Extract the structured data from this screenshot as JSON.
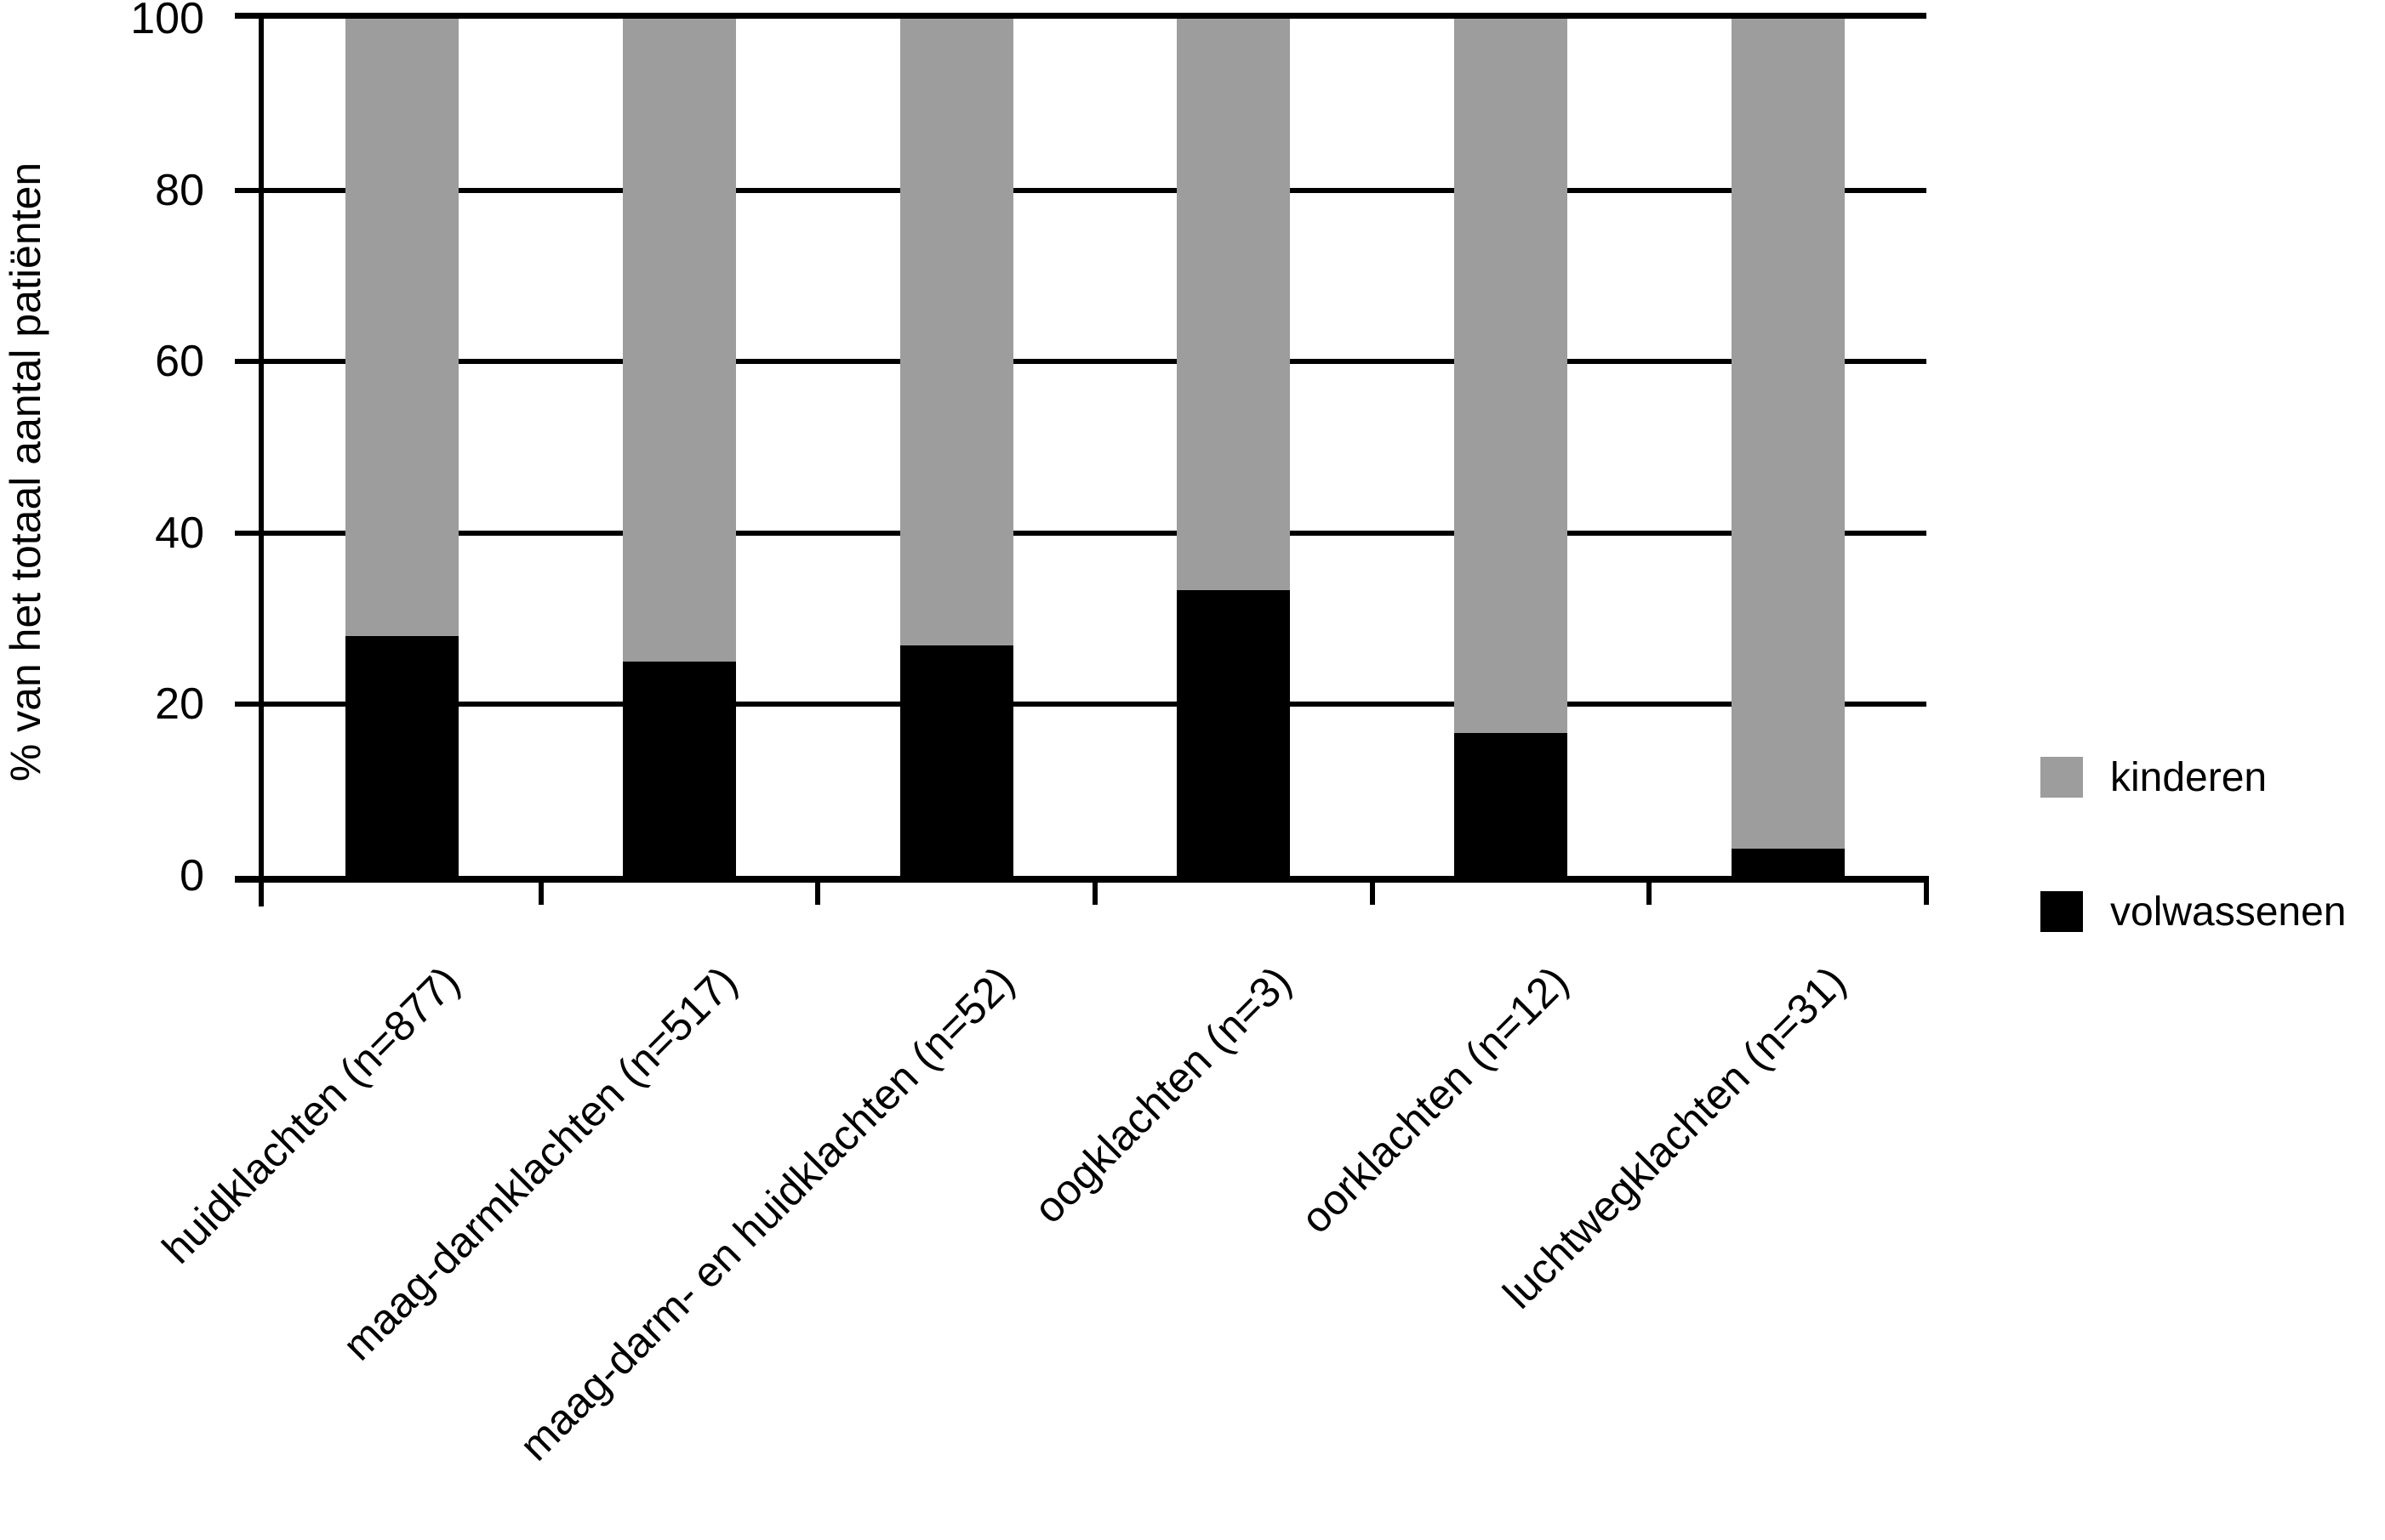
{
  "chart_data": {
    "type": "bar",
    "stacked": true,
    "title": "",
    "xlabel": "",
    "ylabel": "% van het totaal aantal patiënten",
    "ylim": [
      0,
      100
    ],
    "yticks": [
      0,
      20,
      40,
      60,
      80,
      100
    ],
    "grid": "horizontal",
    "categories": [
      "huidklachten (n=877)",
      "maag-darmklachten (n=517)",
      "maag-darm- en huidklachten (n=52)",
      "oogklachten (n=3)",
      "oorklachten (n=12)",
      "luchtwegklachten (n=31)"
    ],
    "series": [
      {
        "name": "volwassenen",
        "color": "#000000",
        "values": [
          28,
          25,
          26.9,
          33.3,
          16.7,
          3.2
        ]
      },
      {
        "name": "kinderen",
        "color": "#9d9d9d",
        "values": [
          72,
          75,
          73.1,
          66.7,
          83.3,
          96.8
        ]
      }
    ],
    "legend": {
      "position": "right",
      "items": [
        {
          "label": "kinderen",
          "color": "#9d9d9d"
        },
        {
          "label": "volwassenen",
          "color": "#000000"
        }
      ]
    }
  }
}
